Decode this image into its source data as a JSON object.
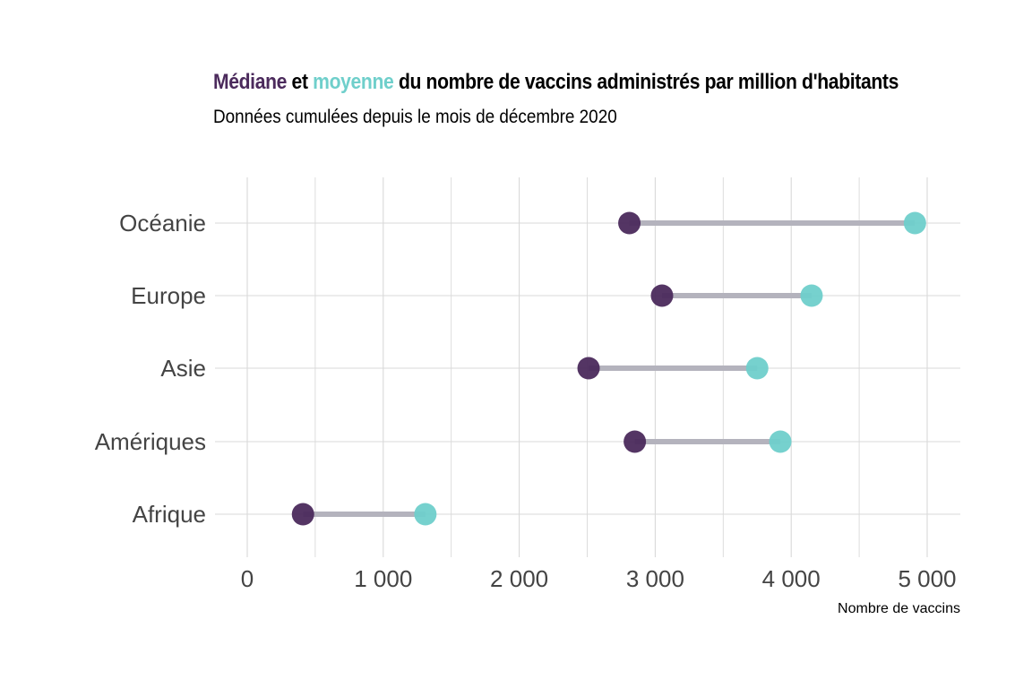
{
  "title": {
    "part1": "Médiane",
    "part2": " et ",
    "part3": "moyenne",
    "part4": " du nombre de vaccins administrés par million d'habitants"
  },
  "subtitle": "Données cumulées depuis le mois de décembre 2020",
  "colors": {
    "median": "#4B2A5C",
    "mean": "#6FCFCB",
    "segment": "#B4B3BD",
    "grid": "#D9D9D9"
  },
  "chart_data": {
    "type": "dumbbell",
    "title": "Médiane et moyenne du nombre de vaccins administrés par million d'habitants",
    "subtitle": "Données cumulées depuis le mois de décembre 2020",
    "xlabel": "Nombre de vaccins",
    "ylabel": "",
    "xlim": [
      0,
      5250
    ],
    "x_ticks": [
      0,
      1000,
      2000,
      3000,
      4000,
      5000
    ],
    "x_tick_labels": [
      "0",
      "1 000",
      "2 000",
      "3 000",
      "4 000",
      "5 000"
    ],
    "categories": [
      "Océanie",
      "Europe",
      "Asie",
      "Amériques",
      "Afrique"
    ],
    "series": [
      {
        "name": "Médiane",
        "values": [
          2810,
          3050,
          2510,
          2850,
          410
        ]
      },
      {
        "name": "moyenne",
        "values": [
          4910,
          4150,
          3750,
          3920,
          1310
        ]
      }
    ],
    "grid": true,
    "legend": "none (colors in title)"
  }
}
